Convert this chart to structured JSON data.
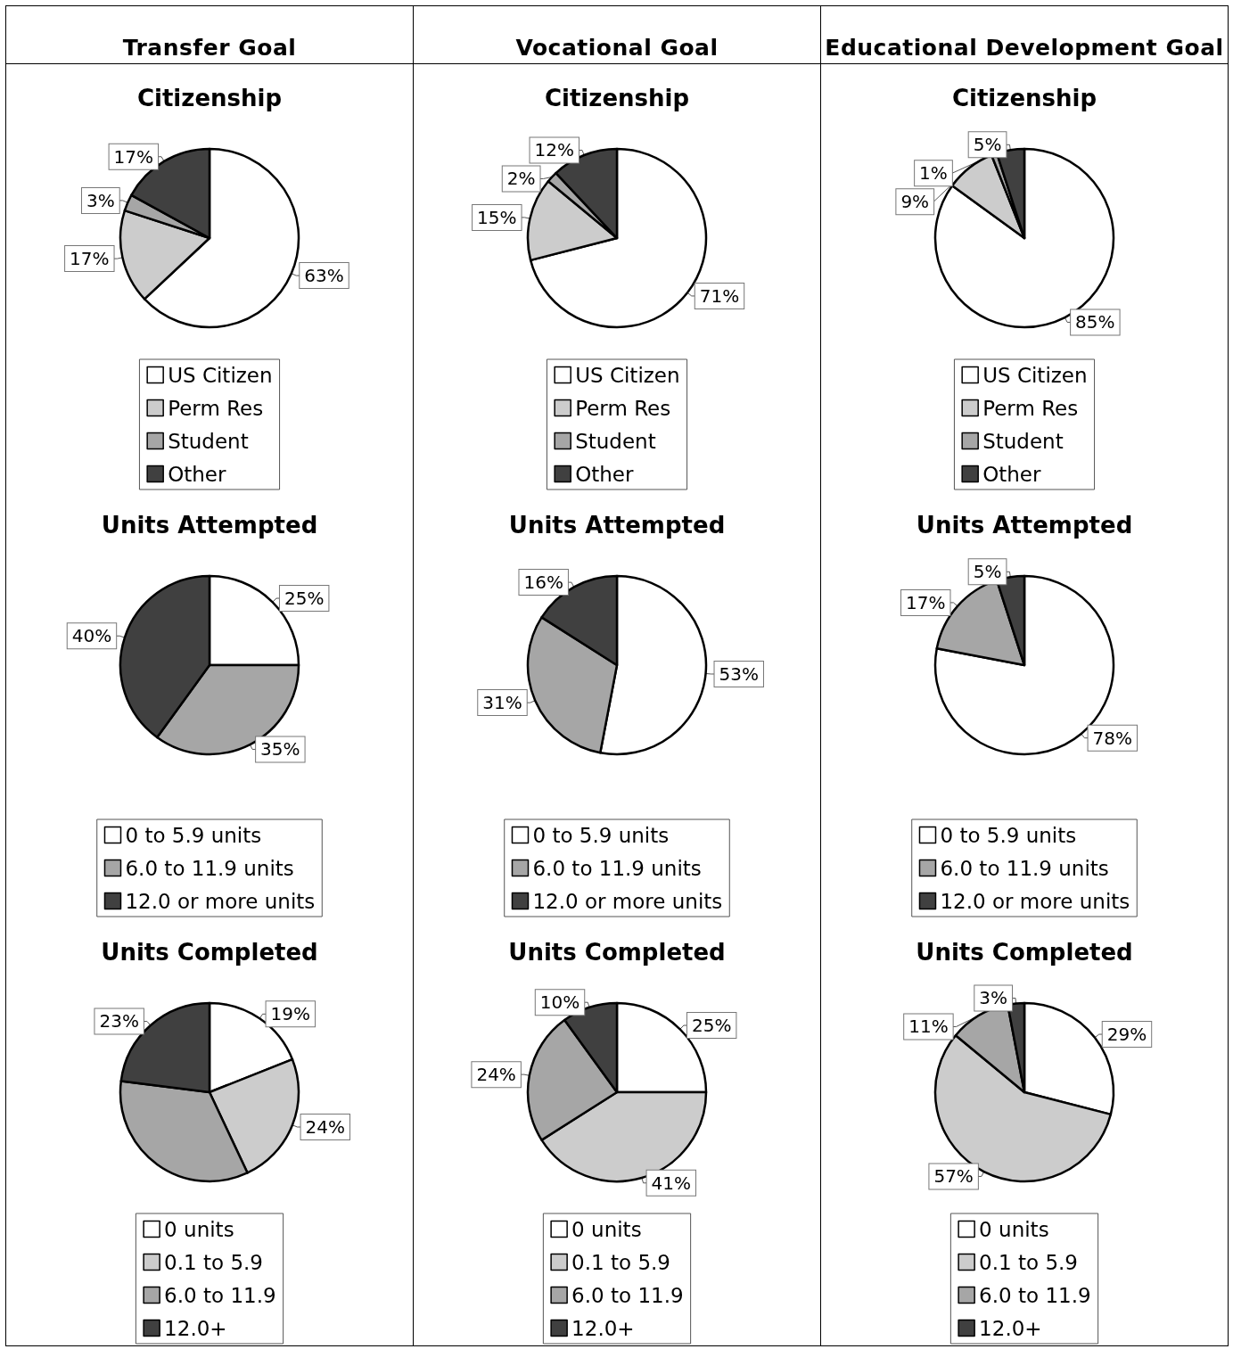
{
  "chart_data": [
    {
      "type": "pie",
      "annotations": [
        "Transfer Goal"
      ],
      "title": "Citizenship",
      "categories": [
        "US Citizen",
        "Perm Res",
        "Student",
        "Other"
      ],
      "values": [
        63,
        17,
        3,
        17
      ],
      "value_labels": [
        "63%",
        "17%",
        "3%",
        "17%"
      ],
      "colors": [
        "#ffffff",
        "#cccccc",
        "#a6a6a6",
        "#404040"
      ],
      "legend": "bottom"
    },
    {
      "type": "pie",
      "annotations": [
        "Vocational Goal"
      ],
      "title": "Citizenship",
      "categories": [
        "US Citizen",
        "Perm Res",
        "Student",
        "Other"
      ],
      "values": [
        71,
        15,
        2,
        12
      ],
      "value_labels": [
        "71%",
        "15%",
        "2%",
        "12%"
      ],
      "colors": [
        "#ffffff",
        "#cccccc",
        "#a6a6a6",
        "#404040"
      ],
      "legend": "bottom"
    },
    {
      "type": "pie",
      "annotations": [
        "Educational Development Goal"
      ],
      "title": "Citizenship",
      "categories": [
        "US Citizen",
        "Perm Res",
        "Student",
        "Other"
      ],
      "values": [
        85,
        9,
        1,
        5
      ],
      "value_labels": [
        "85%",
        "9%",
        "1%",
        "5%"
      ],
      "colors": [
        "#ffffff",
        "#cccccc",
        "#a6a6a6",
        "#404040"
      ],
      "legend": "bottom"
    },
    {
      "type": "pie",
      "title": "Units Attempted",
      "categories": [
        "0 to 5.9 units",
        "6.0 to 11.9 units",
        "12.0 or more units"
      ],
      "values": [
        25,
        35,
        40
      ],
      "value_labels": [
        "25%",
        "35%",
        "40%"
      ],
      "colors": [
        "#ffffff",
        "#a6a6a6",
        "#404040"
      ],
      "legend": "bottom"
    },
    {
      "type": "pie",
      "title": "Units Attempted",
      "categories": [
        "0 to 5.9 units",
        "6.0 to 11.9 units",
        "12.0 or more units"
      ],
      "values": [
        53,
        31,
        16
      ],
      "value_labels": [
        "53%",
        "31%",
        "16%"
      ],
      "colors": [
        "#ffffff",
        "#a6a6a6",
        "#404040"
      ],
      "legend": "bottom"
    },
    {
      "type": "pie",
      "title": "Units Attempted",
      "categories": [
        "0 to 5.9 units",
        "6.0 to 11.9 units",
        "12.0 or more units"
      ],
      "values": [
        78,
        17,
        5
      ],
      "value_labels": [
        "78%",
        "17%",
        "5%"
      ],
      "colors": [
        "#ffffff",
        "#a6a6a6",
        "#404040"
      ],
      "legend": "bottom"
    },
    {
      "type": "pie",
      "title": "Units Completed",
      "categories": [
        "0 units",
        "0.1 to 5.9",
        "6.0 to 11.9",
        "12.0+"
      ],
      "values": [
        19,
        24,
        34,
        23
      ],
      "value_labels": [
        "19%",
        "24%",
        null,
        "23%"
      ],
      "colors": [
        "#ffffff",
        "#cccccc",
        "#a6a6a6",
        "#404040"
      ],
      "legend": "bottom"
    },
    {
      "type": "pie",
      "title": "Units Completed",
      "categories": [
        "0 units",
        "0.1 to 5.9",
        "6.0 to 11.9",
        "12.0+"
      ],
      "values": [
        25,
        41,
        24,
        10
      ],
      "value_labels": [
        "25%",
        "41%",
        "24%",
        "10%"
      ],
      "colors": [
        "#ffffff",
        "#cccccc",
        "#a6a6a6",
        "#404040"
      ],
      "legend": "bottom"
    },
    {
      "type": "pie",
      "title": "Units Completed",
      "categories": [
        "0 units",
        "0.1 to 5.9",
        "6.0 to 11.9",
        "12.0+"
      ],
      "values": [
        29,
        57,
        11,
        3
      ],
      "value_labels": [
        "29%",
        "57%",
        "11%",
        "3%"
      ],
      "colors": [
        "#ffffff",
        "#cccccc",
        "#a6a6a6",
        "#404040"
      ],
      "legend": "bottom"
    }
  ]
}
